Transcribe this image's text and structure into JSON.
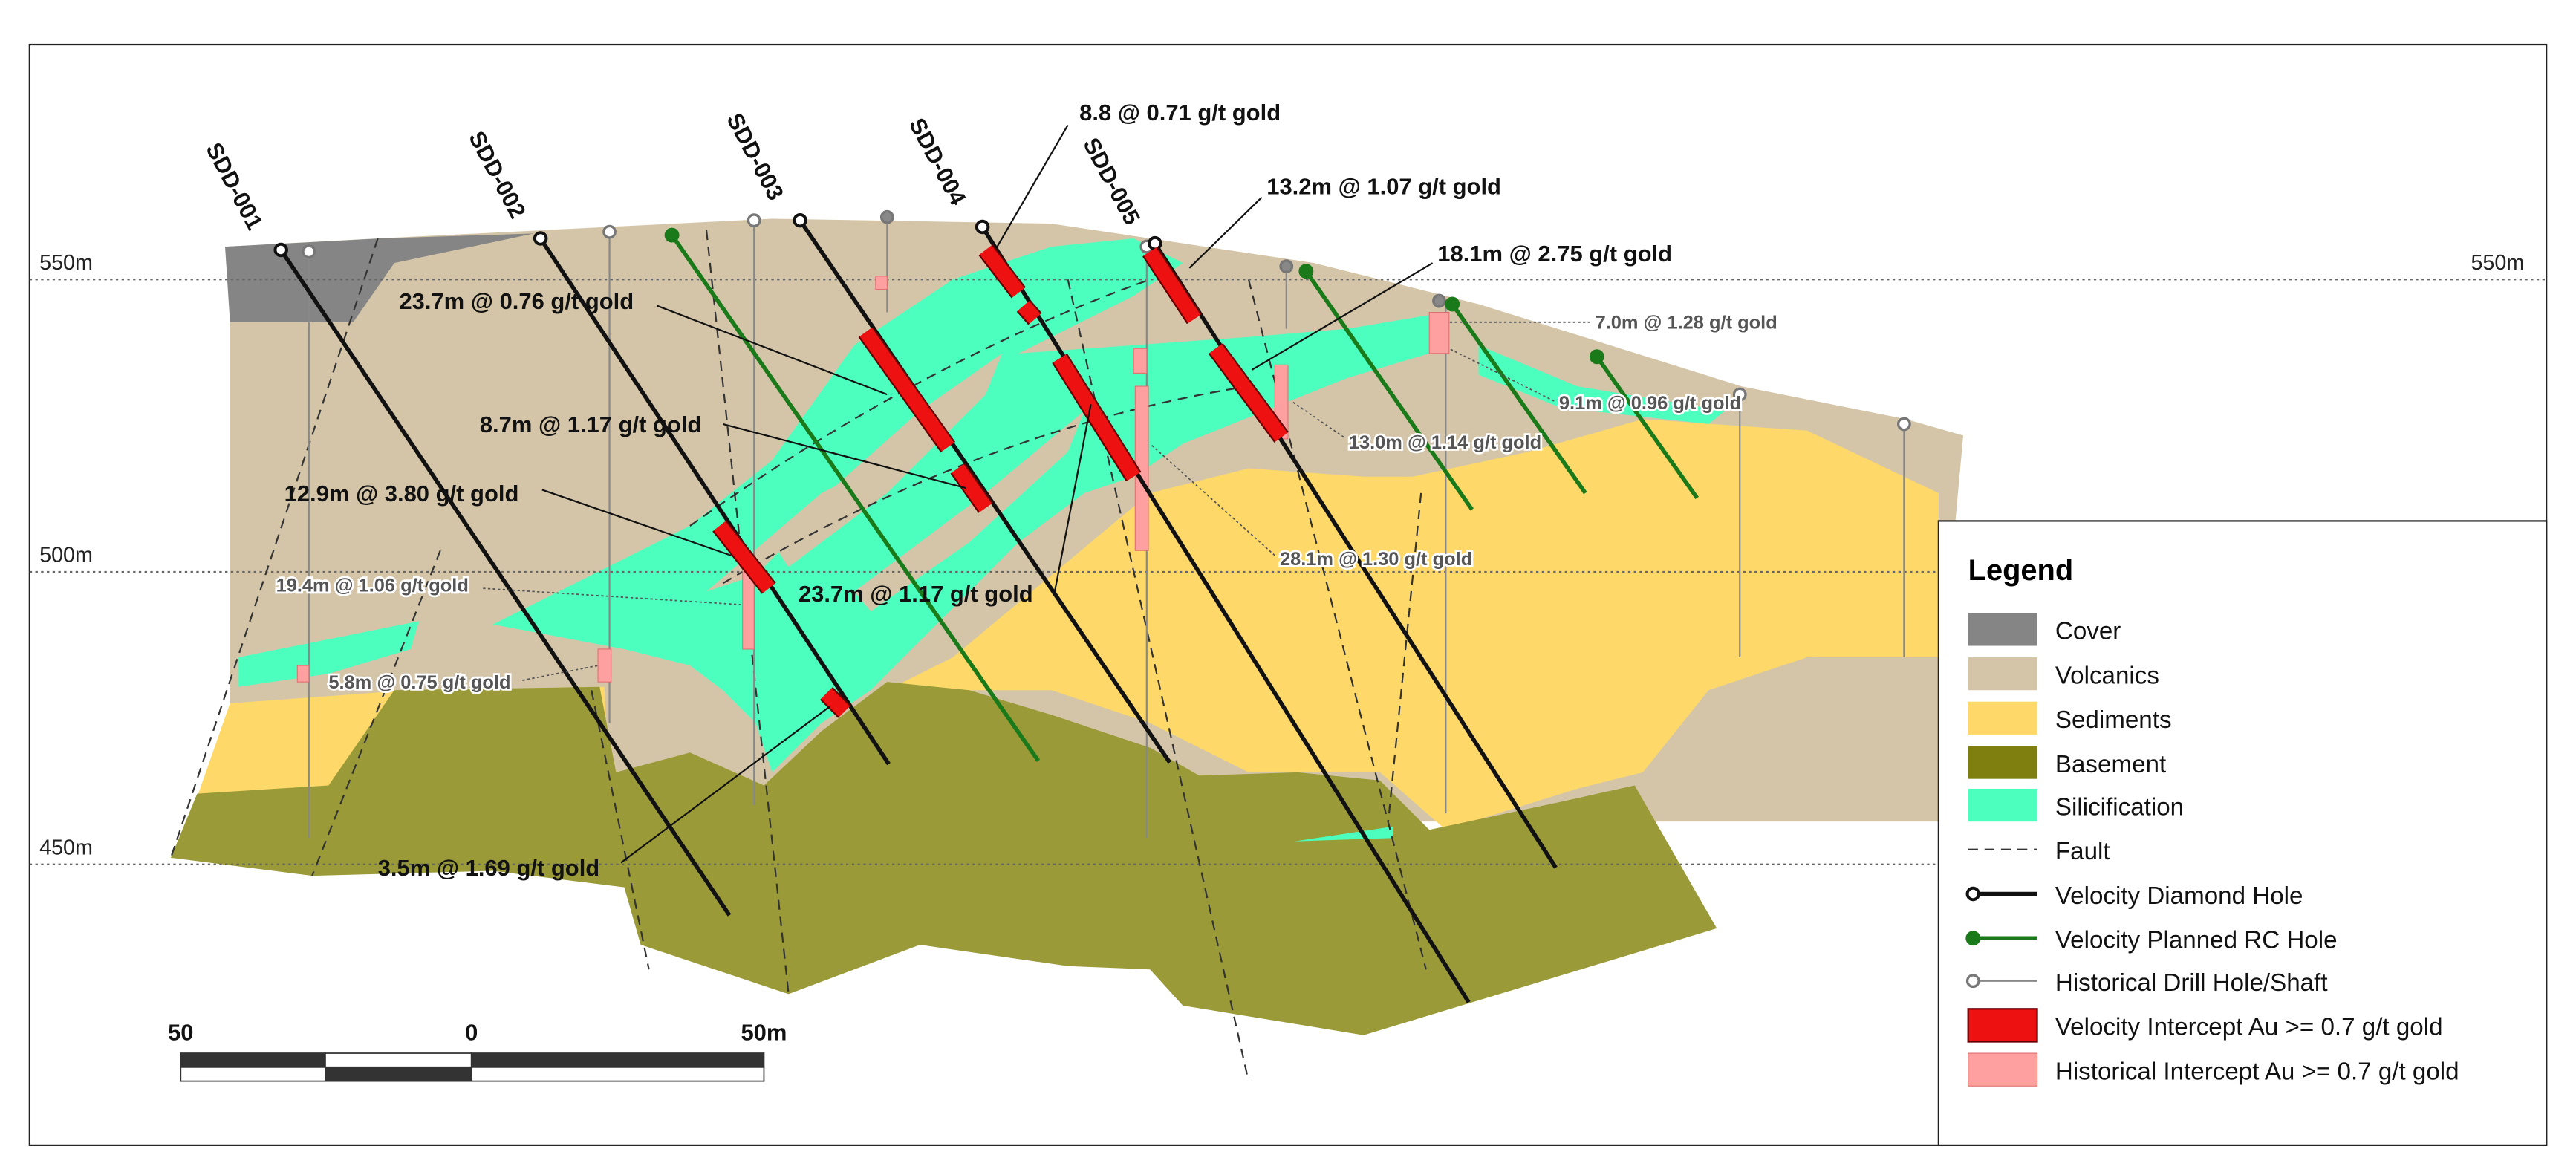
{
  "elevations": [
    "550m",
    "500m",
    "450m"
  ],
  "holes": [
    "SDD-001",
    "SDD-002",
    "SDD-003",
    "SDD-004",
    "SDD-005"
  ],
  "velocity_intercepts": [
    "8.8 @ 0.71 g/t gold",
    "13.2m @ 1.07 g/t gold",
    "18.1m @ 2.75 g/t gold",
    "23.7m @ 0.76 g/t gold",
    "8.7m @ 1.17 g/t gold",
    "12.9m @ 3.80 g/t gold",
    "23.7m @ 1.17 g/t gold",
    "3.5m @ 1.69 g/t gold"
  ],
  "historical_intercepts": [
    "7.0m @ 1.28 g/t gold",
    "9.1m @ 0.96 g/t gold",
    "13.0m @ 1.14 g/t gold",
    "28.1m @ 1.30 g/t gold",
    "19.4m @ 1.06 g/t gold",
    "5.8m @ 0.75 g/t gold"
  ],
  "legend": {
    "title": "Legend",
    "items": [
      "Cover",
      "Volcanics",
      "Sediments",
      "Basement",
      "Silicification",
      "Fault",
      "Velocity Diamond Hole",
      "Velocity Planned RC Hole",
      "Historical Drill Hole/Shaft",
      "Velocity Intercept Au >= 0.7 g/t gold",
      "Historical Intercept Au >= 0.7 g/t gold"
    ]
  },
  "scale_bar": [
    "50",
    "0",
    "50m"
  ]
}
